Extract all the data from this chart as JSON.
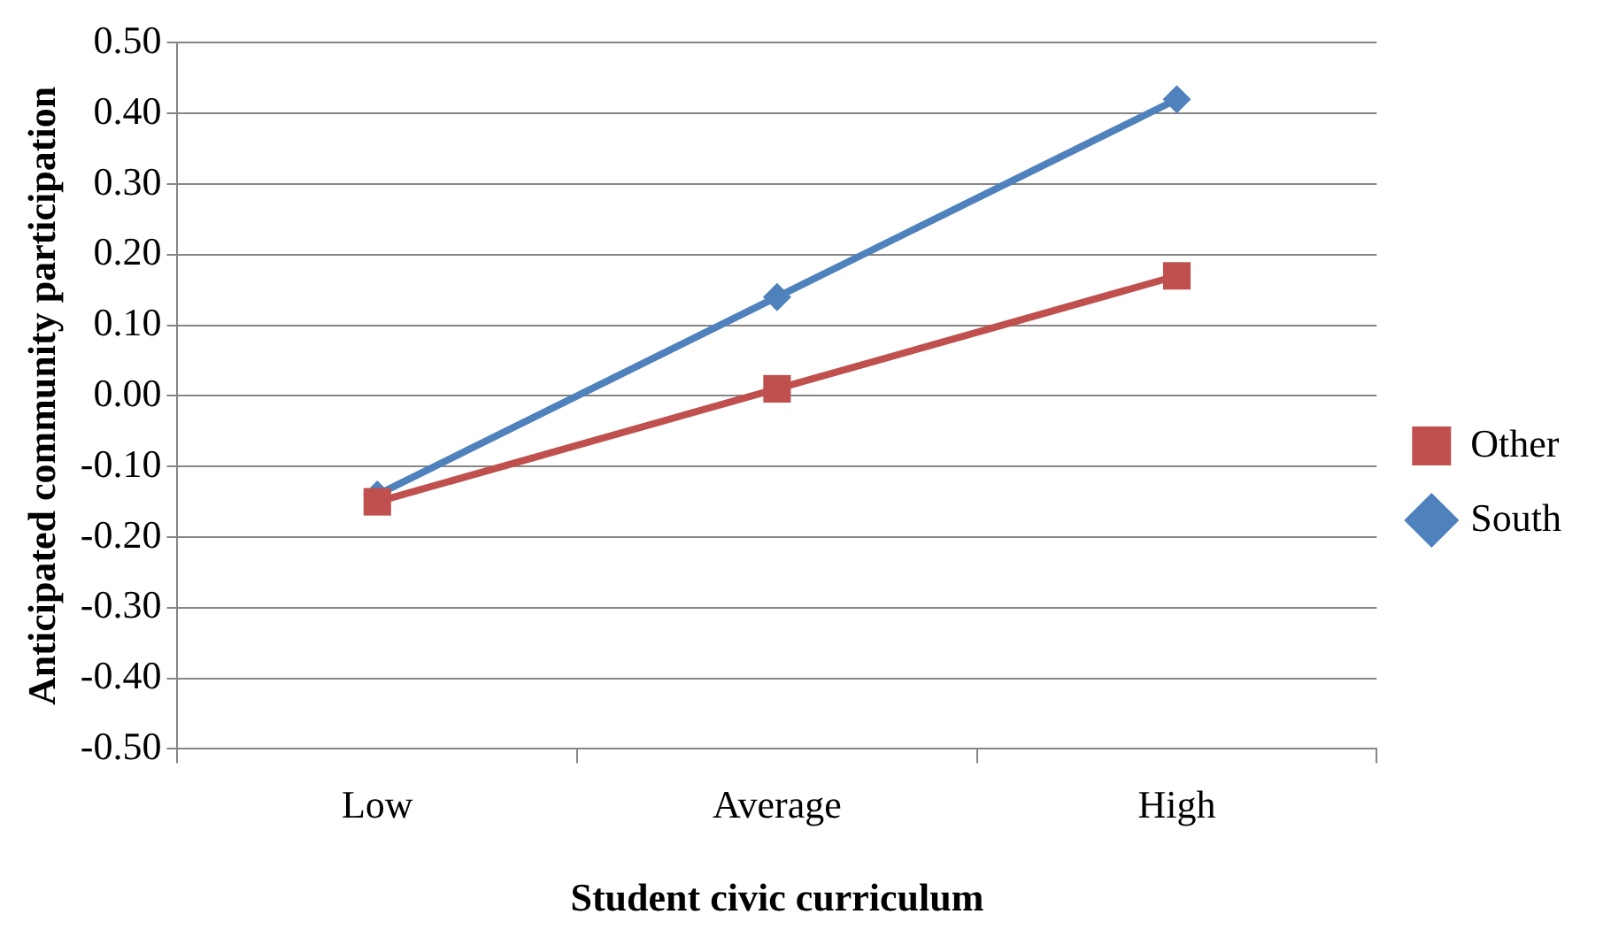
{
  "chart_data": {
    "type": "line",
    "xlabel": "Student civic curriculum",
    "ylabel": "Anticipated community participation",
    "categories": [
      "Low",
      "Average",
      "High"
    ],
    "series": [
      {
        "name": "South",
        "color": "#4f81bd",
        "marker": "diamond",
        "values": [
          -0.14,
          0.14,
          0.42
        ]
      },
      {
        "name": "Other",
        "color": "#c0504d",
        "marker": "square",
        "values": [
          -0.15,
          0.01,
          0.17
        ]
      }
    ],
    "ylim": [
      -0.5,
      0.5
    ],
    "yticks": [
      {
        "value": -0.5,
        "label": "-0.50"
      },
      {
        "value": -0.4,
        "label": "-0.40"
      },
      {
        "value": -0.3,
        "label": "-0.30"
      },
      {
        "value": -0.2,
        "label": "-0.20"
      },
      {
        "value": -0.1,
        "label": "-0.10"
      },
      {
        "value": 0,
        "label": "0.00"
      },
      {
        "value": 0.1,
        "label": "0.10"
      },
      {
        "value": 0.2,
        "label": "0.20"
      },
      {
        "value": 0.3,
        "label": "0.30"
      },
      {
        "value": 0.4,
        "label": "0.40"
      },
      {
        "value": 0.5,
        "label": "0.50"
      }
    ],
    "grid": "y",
    "legend": "right",
    "line_style": "solid"
  }
}
